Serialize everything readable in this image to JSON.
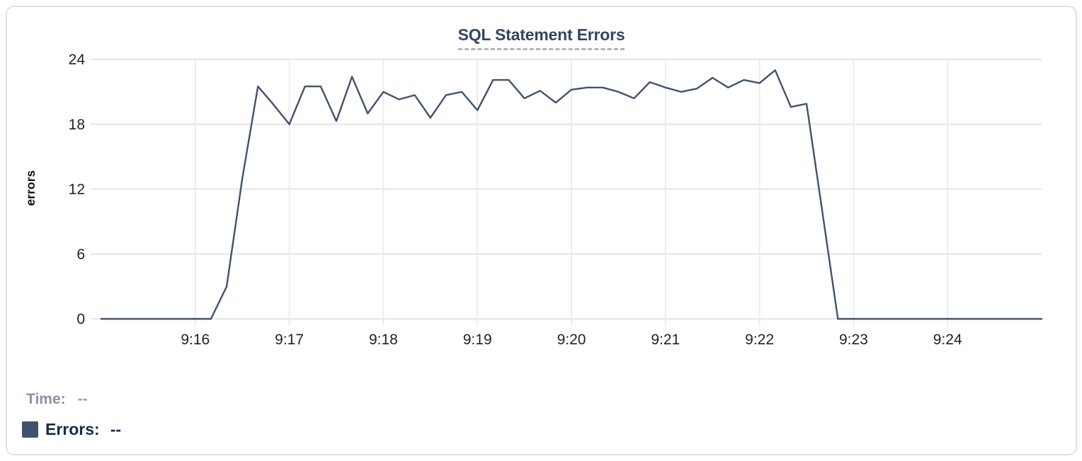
{
  "chart_data": {
    "type": "line",
    "title": "SQL Statement Errors",
    "xlabel": "",
    "ylabel": "errors",
    "x_ticks": [
      "9:16",
      "9:17",
      "9:18",
      "9:19",
      "9:20",
      "9:21",
      "9:22",
      "9:23",
      "9:24"
    ],
    "y_ticks": [
      0,
      6,
      12,
      18,
      24
    ],
    "ylim": [
      0,
      24
    ],
    "x_range": [
      "9:15:00",
      "9:25:00"
    ],
    "grid": true,
    "legend_position": "bottom-left",
    "series": [
      {
        "name": "Errors",
        "color": "#42526E",
        "points": [
          [
            "9:15:00",
            0
          ],
          [
            "9:15:10",
            0
          ],
          [
            "9:15:20",
            0
          ],
          [
            "9:15:30",
            0
          ],
          [
            "9:15:40",
            0
          ],
          [
            "9:15:50",
            0
          ],
          [
            "9:16:00",
            0
          ],
          [
            "9:16:10",
            0
          ],
          [
            "9:16:20",
            3
          ],
          [
            "9:16:30",
            13
          ],
          [
            "9:16:40",
            21.5
          ],
          [
            "9:16:50",
            19.8
          ],
          [
            "9:17:00",
            18
          ],
          [
            "9:17:10",
            21.5
          ],
          [
            "9:17:20",
            21.5
          ],
          [
            "9:17:30",
            18.3
          ],
          [
            "9:17:40",
            22.4
          ],
          [
            "9:17:50",
            19
          ],
          [
            "9:18:00",
            21
          ],
          [
            "9:18:10",
            20.3
          ],
          [
            "9:18:20",
            20.7
          ],
          [
            "9:18:30",
            18.6
          ],
          [
            "9:18:40",
            20.7
          ],
          [
            "9:18:50",
            21
          ],
          [
            "9:19:00",
            19.3
          ],
          [
            "9:19:10",
            22.1
          ],
          [
            "9:19:20",
            22.1
          ],
          [
            "9:19:30",
            20.4
          ],
          [
            "9:19:40",
            21.1
          ],
          [
            "9:19:50",
            20
          ],
          [
            "9:20:00",
            21.2
          ],
          [
            "9:20:10",
            21.4
          ],
          [
            "9:20:20",
            21.4
          ],
          [
            "9:20:30",
            21
          ],
          [
            "9:20:40",
            20.4
          ],
          [
            "9:20:50",
            21.9
          ],
          [
            "9:21:00",
            21.4
          ],
          [
            "9:21:10",
            21
          ],
          [
            "9:21:20",
            21.3
          ],
          [
            "9:21:30",
            22.3
          ],
          [
            "9:21:40",
            21.4
          ],
          [
            "9:21:50",
            22.1
          ],
          [
            "9:22:00",
            21.8
          ],
          [
            "9:22:10",
            23
          ],
          [
            "9:22:20",
            19.6
          ],
          [
            "9:22:30",
            19.9
          ],
          [
            "9:22:40",
            10
          ],
          [
            "9:22:50",
            0
          ],
          [
            "9:23:00",
            0
          ],
          [
            "9:23:10",
            0
          ],
          [
            "9:23:20",
            0
          ],
          [
            "9:23:30",
            0
          ],
          [
            "9:23:40",
            0
          ],
          [
            "9:23:50",
            0
          ],
          [
            "9:24:00",
            0
          ],
          [
            "9:24:10",
            0
          ],
          [
            "9:24:20",
            0
          ],
          [
            "9:24:30",
            0
          ],
          [
            "9:24:40",
            0
          ],
          [
            "9:24:50",
            0
          ],
          [
            "9:25:00",
            0
          ]
        ]
      }
    ]
  },
  "legend": {
    "time_label": "Time:",
    "time_value": "--",
    "errors_label": "Errors:",
    "errors_value": "--",
    "swatch_color": "#42526E"
  },
  "colors": {
    "title": "#344563",
    "line": "#42526E",
    "grid_horizontal": "#e6e6e6",
    "grid_vertical": "#ededed",
    "tick_label": "#202228",
    "time_label": "#8993a4",
    "errors_label": "#172b4d",
    "card_border": "#dfe1e6"
  }
}
